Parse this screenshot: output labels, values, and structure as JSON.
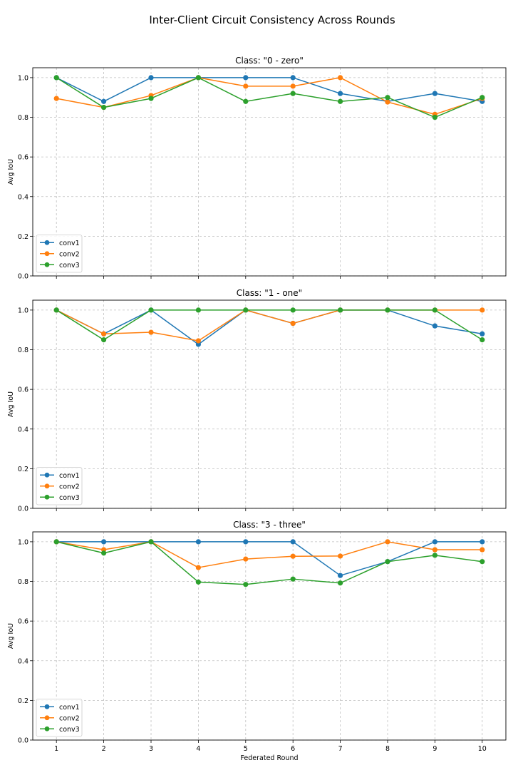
{
  "figure": {
    "suptitle": "Inter-Client Circuit Consistency Across Rounds"
  },
  "chart_data": [
    {
      "type": "line",
      "title": "Class: \"0 - zero\"",
      "xlabel": "",
      "ylabel": "Avg IoU",
      "x": [
        1,
        2,
        3,
        4,
        5,
        6,
        7,
        8,
        9,
        10
      ],
      "xlim": [
        0.5,
        10.5
      ],
      "ylim": [
        0.0,
        1.05
      ],
      "yticks": [
        0.0,
        0.2,
        0.4,
        0.6,
        0.8,
        1.0
      ],
      "ytick_labels": [
        "0.0",
        "0.2",
        "0.4",
        "0.6",
        "0.8",
        "1.0"
      ],
      "grid": true,
      "legend": "lower-left",
      "series": [
        {
          "name": "conv1",
          "color": "#1f77b4",
          "values": [
            1.0,
            0.88,
            1.0,
            1.0,
            1.0,
            1.0,
            0.92,
            0.88,
            0.92,
            0.88
          ]
        },
        {
          "name": "conv2",
          "color": "#ff7f0e",
          "values": [
            0.895,
            0.85,
            0.91,
            1.0,
            0.957,
            0.957,
            1.0,
            0.877,
            0.815,
            0.895
          ]
        },
        {
          "name": "conv3",
          "color": "#2ca02c",
          "values": [
            1.0,
            0.85,
            0.895,
            1.0,
            0.88,
            0.92,
            0.88,
            0.9,
            0.8,
            0.9
          ]
        }
      ]
    },
    {
      "type": "line",
      "title": "Class: \"1 - one\"",
      "xlabel": "",
      "ylabel": "Avg IoU",
      "x": [
        1,
        2,
        3,
        4,
        5,
        6,
        7,
        8,
        9,
        10
      ],
      "xlim": [
        0.5,
        10.5
      ],
      "ylim": [
        0.0,
        1.05
      ],
      "yticks": [
        0.0,
        0.2,
        0.4,
        0.6,
        0.8,
        1.0
      ],
      "ytick_labels": [
        "0.0",
        "0.2",
        "0.4",
        "0.6",
        "0.8",
        "1.0"
      ],
      "grid": true,
      "legend": "lower-left",
      "series": [
        {
          "name": "conv1",
          "color": "#1f77b4",
          "values": [
            1.0,
            0.88,
            1.0,
            0.827,
            1.0,
            0.933,
            1.0,
            1.0,
            0.92,
            0.88
          ]
        },
        {
          "name": "conv2",
          "color": "#ff7f0e",
          "values": [
            1.0,
            0.88,
            0.888,
            0.845,
            1.0,
            0.933,
            1.0,
            1.0,
            1.0,
            1.0
          ]
        },
        {
          "name": "conv3",
          "color": "#2ca02c",
          "values": [
            1.0,
            0.85,
            1.0,
            1.0,
            1.0,
            1.0,
            1.0,
            1.0,
            1.0,
            0.85
          ]
        }
      ]
    },
    {
      "type": "line",
      "title": "Class: \"3 - three\"",
      "xlabel": "Federated Round",
      "ylabel": "Avg IoU",
      "x": [
        1,
        2,
        3,
        4,
        5,
        6,
        7,
        8,
        9,
        10
      ],
      "xlim": [
        0.5,
        10.5
      ],
      "ylim": [
        0.0,
        1.05
      ],
      "yticks": [
        0.0,
        0.2,
        0.4,
        0.6,
        0.8,
        1.0
      ],
      "ytick_labels": [
        "0.0",
        "0.2",
        "0.4",
        "0.6",
        "0.8",
        "1.0"
      ],
      "xtick_labels": [
        "1",
        "2",
        "3",
        "4",
        "5",
        "6",
        "7",
        "8",
        "9",
        "10"
      ],
      "grid": true,
      "legend": "lower-left",
      "series": [
        {
          "name": "conv1",
          "color": "#1f77b4",
          "values": [
            1.0,
            1.0,
            1.0,
            1.0,
            1.0,
            1.0,
            0.83,
            0.9,
            1.0,
            1.0
          ]
        },
        {
          "name": "conv2",
          "color": "#ff7f0e",
          "values": [
            1.0,
            0.96,
            1.0,
            0.87,
            0.913,
            0.927,
            0.928,
            1.0,
            0.96,
            0.96
          ]
        },
        {
          "name": "conv3",
          "color": "#2ca02c",
          "values": [
            1.0,
            0.943,
            1.0,
            0.797,
            0.785,
            0.812,
            0.792,
            0.9,
            0.932,
            0.9
          ]
        }
      ]
    }
  ]
}
